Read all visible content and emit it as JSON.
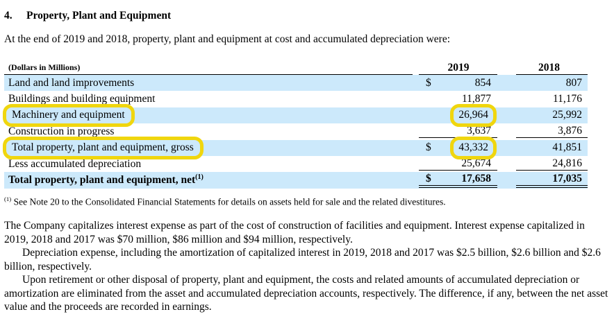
{
  "doc": {
    "section_number": "4.",
    "section_title": "Property, Plant and Equipment",
    "intro": "At the end of 2019 and 2018, property, plant and equipment at cost and accumulated depreciation were:"
  },
  "table": {
    "units_label": "(Dollars in Millions)",
    "columns": [
      "2019",
      "2018"
    ],
    "rows": [
      {
        "label": "Land and land improvements",
        "cur": "$",
        "v2019": "854",
        "v2018": "807"
      },
      {
        "label": "Buildings and building equipment",
        "cur": "",
        "v2019": "11,877",
        "v2018": "11,176"
      },
      {
        "label": "Machinery and equipment",
        "cur": "",
        "v2019": "26,964",
        "v2018": "25,992"
      },
      {
        "label": "Construction in progress",
        "cur": "",
        "v2019": "3,637",
        "v2018": "3,876"
      },
      {
        "label": "Total property, plant and equipment, gross",
        "cur": "$",
        "v2019": "43,332",
        "v2018": "41,851"
      },
      {
        "label": "Less accumulated depreciation",
        "cur": "",
        "v2019": "25,674",
        "v2018": "24,816"
      },
      {
        "label": "Total property, plant and equipment, net",
        "label_sup": "(1)",
        "cur": "$",
        "v2019": "17,658",
        "v2018": "17,035"
      }
    ],
    "footnote_sup": "(1)",
    "footnote_text": " See Note 20 to the Consolidated Financial Statements for details on assets held for sale and the related divestitures."
  },
  "annotations": {
    "highlight_color": "#F0D60E",
    "highlighted": [
      "Machinery and equipment label",
      "26,964",
      "Total property, plant and equipment, gross label",
      "43,332"
    ]
  },
  "body": {
    "paragraphs": [
      "The Company capitalizes interest expense as part of the cost of construction of facilities and equipment. Interest expense capitalized in 2019, 2018 and 2017 was $70 million, $86 million and $94 million, respectively.",
      "Depreciation expense, including the amortization of capitalized interest in 2019, 2018 and 2017 was $2.5 billion, $2.6 billion and $2.6 billion, respectively.",
      "Upon retirement or other disposal of property, plant and equipment, the costs and related amounts of accumulated depreciation or amortization are eliminated from the asset and accumulated depreciation accounts, respectively. The difference, if any, between the net asset value and the proceeds are recorded in earnings."
    ]
  }
}
